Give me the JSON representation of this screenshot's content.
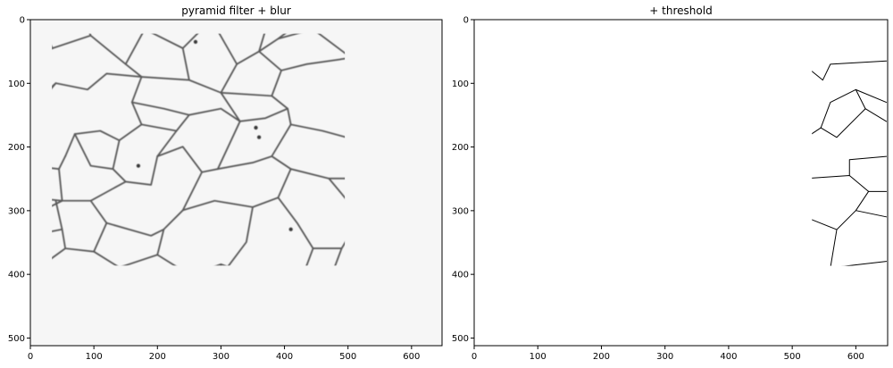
{
  "panels": [
    {
      "title": "pyramid filter + blur",
      "style": "blur",
      "x_ticks": [
        "0",
        "100",
        "200",
        "300",
        "400",
        "500",
        "600"
      ],
      "y_ticks": [
        "0",
        "100",
        "200",
        "300",
        "400",
        "500"
      ]
    },
    {
      "title": "+ threshold",
      "style": "threshold",
      "x_ticks": [
        "0",
        "100",
        "200",
        "300",
        "400",
        "500",
        "600"
      ],
      "y_ticks": [
        "0",
        "100",
        "200",
        "300",
        "400",
        "500"
      ]
    }
  ],
  "colors": {
    "background": "#ffffff",
    "blur_image_bg": "#f6f6f6",
    "blur_boundary": "#5a5a5a",
    "threshold_boundary": "#000000",
    "axis": "#000000"
  }
}
